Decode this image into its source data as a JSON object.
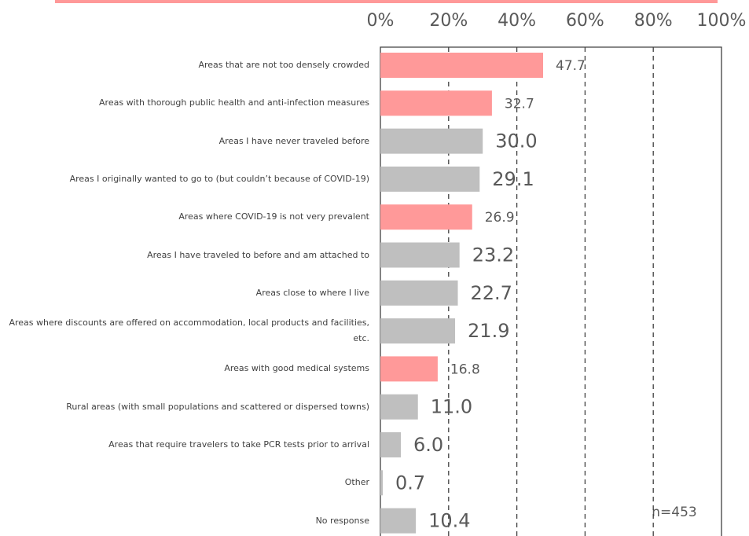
{
  "chart_data": {
    "type": "hbar",
    "categories": [
      "Areas that are not too densely crowded",
      "Areas with thorough public health and anti-infection measures",
      "Areas I have never traveled before",
      "Areas I originally wanted to go to (but couldn’t because of COVID-19)",
      "Areas where COVID-19 is not very prevalent",
      "Areas I have traveled to before and am attached to",
      "Areas close to where I live",
      "Areas where discounts are offered on accommodation, local products and facilities, etc.",
      "Areas with good medical systems",
      "Rural areas (with small populations and scattered or dispersed towns)",
      "Areas that require travelers to take PCR tests prior to arrival",
      "Other",
      "No response"
    ],
    "values": [
      47.7,
      32.7,
      30.0,
      29.1,
      26.9,
      23.2,
      22.7,
      21.9,
      16.8,
      11.0,
      6.0,
      0.7,
      10.4
    ],
    "value_labels": [
      "47.7",
      "32.7",
      "30.0",
      "29.1",
      "26.9",
      "23.2",
      "22.7",
      "21.9",
      "16.8",
      "11.0",
      "6.0",
      "0.7",
      "10.4"
    ],
    "colors": [
      "#ff9999",
      "#ff9999",
      "#bfbfbf",
      "#bfbfbf",
      "#ff9999",
      "#bfbfbf",
      "#bfbfbf",
      "#bfbfbf",
      "#ff9999",
      "#bfbfbf",
      "#bfbfbf",
      "#bfbfbf",
      "#bfbfbf"
    ],
    "xlim": [
      0,
      100
    ],
    "xticks": [
      {
        "value": 0,
        "label": "0%"
      },
      {
        "value": 20,
        "label": "20%"
      },
      {
        "value": 40,
        "label": "40%"
      },
      {
        "value": 60,
        "label": "60%"
      },
      {
        "value": 80,
        "label": "80%"
      },
      {
        "value": 100,
        "label": "100%"
      }
    ],
    "grid": true,
    "annotation": "n=453"
  }
}
